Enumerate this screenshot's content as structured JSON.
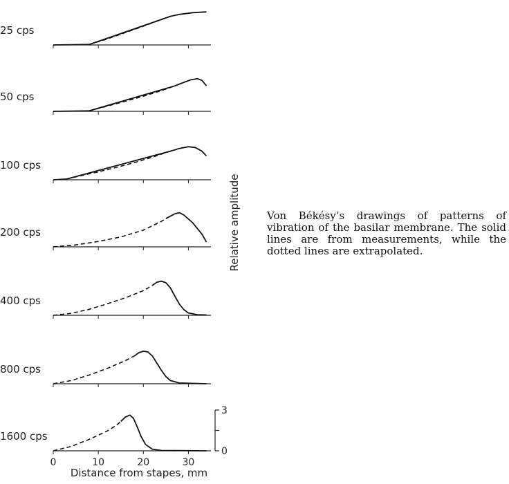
{
  "caption": "Von Békésy’s drawings of patterns of vibration of the basilar membrane. The solid lines are from measurements, while the dotted lines are extrapolated.",
  "chart_data": {
    "type": "line",
    "xlabel": "Distance from stapes, mm",
    "ylabel": "Relative amplitude",
    "xlim": [
      0,
      35
    ],
    "x_ticks": [
      0,
      10,
      20,
      30
    ],
    "ylim": [
      0,
      3
    ],
    "y_ticks": [
      0,
      3
    ],
    "grid": false,
    "legend": null,
    "panels": [
      {
        "label": "25 cps",
        "dashed": [
          [
            8,
            0.03
          ],
          [
            12,
            0.38
          ],
          [
            16,
            0.78
          ],
          [
            20,
            1.18
          ],
          [
            24,
            1.6
          ],
          [
            26,
            1.8
          ]
        ],
        "solid": [
          [
            0,
            0
          ],
          [
            8,
            0.03
          ],
          [
            26,
            1.8
          ],
          [
            28,
            1.92
          ],
          [
            31,
            2.03
          ],
          [
            34,
            2.08
          ]
        ]
      },
      {
        "label": "50 cps",
        "dashed": [
          [
            8,
            0.03
          ],
          [
            12,
            0.33
          ],
          [
            16,
            0.63
          ],
          [
            20,
            0.95
          ],
          [
            24,
            1.3
          ],
          [
            27,
            1.6
          ]
        ],
        "solid": [
          [
            0,
            0
          ],
          [
            8,
            0.03
          ],
          [
            27,
            1.6
          ],
          [
            29,
            1.82
          ],
          [
            30.5,
            1.98
          ],
          [
            32,
            2.05
          ],
          [
            33,
            1.95
          ],
          [
            34,
            1.6
          ]
        ]
      },
      {
        "label": "100 cps",
        "dashed": [
          [
            3,
            0.05
          ],
          [
            6,
            0.25
          ],
          [
            10,
            0.5
          ],
          [
            14,
            0.78
          ],
          [
            18,
            1.08
          ],
          [
            22,
            1.42
          ],
          [
            26,
            1.8
          ]
        ],
        "solid": [
          [
            0,
            0
          ],
          [
            3,
            0.05
          ],
          [
            26,
            1.8
          ],
          [
            28,
            1.97
          ],
          [
            30,
            2.08
          ],
          [
            31.5,
            2.03
          ],
          [
            33,
            1.8
          ],
          [
            34,
            1.5
          ]
        ]
      },
      {
        "label": "200 cps",
        "dashed": [
          [
            0,
            0
          ],
          [
            5,
            0.12
          ],
          [
            10,
            0.34
          ],
          [
            15,
            0.62
          ],
          [
            20,
            1.05
          ],
          [
            24,
            1.6
          ],
          [
            25,
            1.78
          ]
        ],
        "solid": [
          [
            25,
            1.78
          ],
          [
            27,
            2.08
          ],
          [
            28,
            2.15
          ],
          [
            29,
            2.0
          ],
          [
            31,
            1.5
          ],
          [
            33,
            0.8
          ],
          [
            34,
            0.3
          ]
        ]
      },
      {
        "label": "400 cps",
        "dashed": [
          [
            0,
            0
          ],
          [
            4,
            0.12
          ],
          [
            8,
            0.38
          ],
          [
            12,
            0.72
          ],
          [
            16,
            1.1
          ],
          [
            20,
            1.55
          ],
          [
            22,
            1.88
          ]
        ],
        "solid": [
          [
            22,
            1.88
          ],
          [
            23,
            2.08
          ],
          [
            24,
            2.15
          ],
          [
            25,
            2.05
          ],
          [
            26,
            1.72
          ],
          [
            27,
            1.2
          ],
          [
            28,
            0.7
          ],
          [
            29,
            0.35
          ],
          [
            30,
            0.15
          ],
          [
            32,
            0.04
          ],
          [
            34,
            0.02
          ]
        ]
      },
      {
        "label": "800 cps",
        "dashed": [
          [
            0,
            0
          ],
          [
            4,
            0.2
          ],
          [
            8,
            0.55
          ],
          [
            12,
            0.97
          ],
          [
            16,
            1.45
          ],
          [
            18,
            1.75
          ]
        ],
        "solid": [
          [
            18,
            1.75
          ],
          [
            19,
            1.95
          ],
          [
            20,
            2.05
          ],
          [
            21,
            2.0
          ],
          [
            22,
            1.75
          ],
          [
            23,
            1.3
          ],
          [
            24,
            0.85
          ],
          [
            25,
            0.45
          ],
          [
            26,
            0.2
          ],
          [
            28,
            0.05
          ],
          [
            34,
            0
          ]
        ]
      },
      {
        "label": "1600 cps",
        "dashed": [
          [
            0,
            0
          ],
          [
            4,
            0.28
          ],
          [
            8,
            0.72
          ],
          [
            12,
            1.25
          ],
          [
            14,
            1.6
          ],
          [
            15,
            1.85
          ]
        ],
        "solid": [
          [
            15,
            1.85
          ],
          [
            16,
            2.12
          ],
          [
            17,
            2.25
          ],
          [
            17.8,
            2.05
          ],
          [
            18.5,
            1.6
          ],
          [
            19.5,
            0.9
          ],
          [
            20.5,
            0.4
          ],
          [
            22,
            0.1
          ],
          [
            24,
            0.02
          ],
          [
            34,
            0
          ]
        ]
      }
    ]
  }
}
